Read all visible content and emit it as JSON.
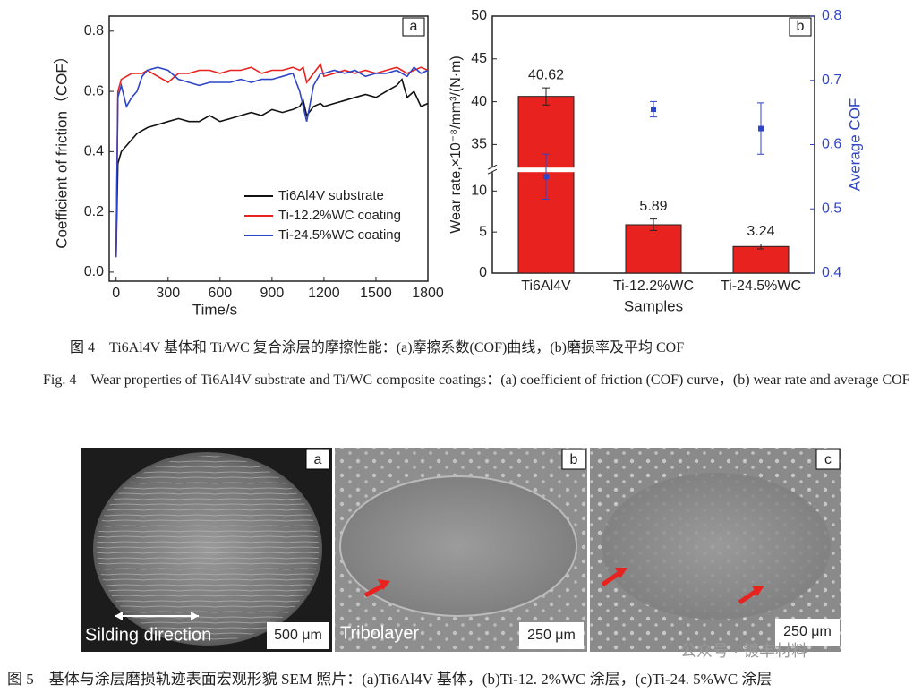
{
  "chart_data": [
    {
      "type": "line",
      "panel": "a",
      "xlabel": "Time/s",
      "ylabel": "Coefficient of friction（COF）",
      "x": [
        0,
        10,
        30,
        60,
        90,
        120,
        150,
        180,
        240,
        300,
        360,
        420,
        480,
        540,
        600,
        660,
        720,
        780,
        840,
        900,
        960,
        1020,
        1060,
        1080,
        1100,
        1140,
        1180,
        1200,
        1260,
        1320,
        1380,
        1440,
        1500,
        1560,
        1620,
        1650,
        1680,
        1720,
        1760,
        1800
      ],
      "series": [
        {
          "name": "Ti6Al4V substrate",
          "color": "#111111",
          "values": [
            0.05,
            0.36,
            0.4,
            0.42,
            0.44,
            0.46,
            0.47,
            0.48,
            0.49,
            0.5,
            0.51,
            0.5,
            0.5,
            0.52,
            0.5,
            0.51,
            0.52,
            0.53,
            0.52,
            0.54,
            0.53,
            0.54,
            0.55,
            0.57,
            0.52,
            0.55,
            0.56,
            0.55,
            0.56,
            0.57,
            0.58,
            0.59,
            0.58,
            0.6,
            0.62,
            0.64,
            0.58,
            0.6,
            0.55,
            0.56
          ]
        },
        {
          "name": "Ti-12.2%WC coating",
          "color": "#e8231f",
          "values": [
            0.05,
            0.6,
            0.64,
            0.65,
            0.66,
            0.66,
            0.66,
            0.67,
            0.65,
            0.63,
            0.66,
            0.66,
            0.67,
            0.67,
            0.66,
            0.67,
            0.67,
            0.68,
            0.66,
            0.67,
            0.67,
            0.68,
            0.67,
            0.68,
            0.63,
            0.66,
            0.69,
            0.65,
            0.66,
            0.67,
            0.66,
            0.67,
            0.66,
            0.67,
            0.68,
            0.67,
            0.66,
            0.67,
            0.68,
            0.67
          ]
        },
        {
          "name": "Ti-24.5%WC coating",
          "color": "#2f45c8",
          "values": [
            0.05,
            0.58,
            0.62,
            0.55,
            0.58,
            0.6,
            0.65,
            0.67,
            0.68,
            0.67,
            0.64,
            0.63,
            0.62,
            0.63,
            0.63,
            0.63,
            0.64,
            0.63,
            0.64,
            0.64,
            0.65,
            0.66,
            0.6,
            0.55,
            0.5,
            0.62,
            0.66,
            0.66,
            0.67,
            0.66,
            0.67,
            0.65,
            0.66,
            0.66,
            0.67,
            0.66,
            0.65,
            0.68,
            0.66,
            0.67
          ]
        }
      ],
      "xlim": [
        -40,
        1800
      ],
      "xticks": [
        0,
        300,
        600,
        900,
        1200,
        1500,
        1800
      ],
      "ylim": [
        -0.03,
        0.85
      ],
      "yticks": [
        {
          "value": 0,
          "label": "0.0"
        },
        0.2,
        0.4,
        0.6,
        0.8
      ],
      "legend": "lower right"
    },
    {
      "type": "bar",
      "panel": "b",
      "xlabel": "Samples",
      "ylabel": "Wear rate,×10⁻⁸/mm³/(N·m)",
      "y2label": "Average COF",
      "categories": [
        "Ti6Al4V",
        "Ti-12.2%WC",
        "Ti-24.5%WC"
      ],
      "values": [
        40.62,
        5.89,
        3.24
      ],
      "errors": [
        1.0,
        0.7,
        0.3
      ],
      "color": "#e8231f",
      "ylim": [
        0,
        50
      ],
      "axis_break": [
        12.3,
        32.3
      ],
      "yticks": [
        0,
        5,
        10,
        35,
        40,
        45,
        50
      ],
      "average_cof": {
        "values": [
          0.55,
          0.655,
          0.625
        ],
        "errors": [
          0.035,
          0.012,
          0.04
        ],
        "color": "#2f45c8",
        "axis": "y2"
      },
      "y2lim": [
        0.4,
        0.8
      ],
      "y2ticks": [
        0.4,
        0.5,
        0.6,
        0.7,
        0.8
      ]
    }
  ],
  "figure4": {
    "caption_cn": "图 4　Ti6Al4V 基体和 Ti/WC 复合涂层的摩擦性能：(a)摩擦系数(COF)曲线，(b)磨损率及平均 COF",
    "caption_en": "Fig. 4　Wear properties of Ti6Al4V substrate and Ti/WC composite coatings：(a) coefficient of friction (COF) curve，(b) wear rate and average COF"
  },
  "figure5": {
    "panels": [
      {
        "label": "a",
        "annotation": "Silding direction",
        "scale": "500 μm"
      },
      {
        "label": "b",
        "annotation": "Tribolayer",
        "scale": "250 μm"
      },
      {
        "label": "c",
        "scale": "250 μm"
      }
    ],
    "caption": "图 5　基体与涂层磨损轨迹表面宏观形貌 SEM 照片：(a)Ti6Al4V 基体，(b)Ti-12. 2%WC 涂层，(c)Ti-24. 5%WC 涂层",
    "watermark": "公众号 · 镀丰材料"
  }
}
